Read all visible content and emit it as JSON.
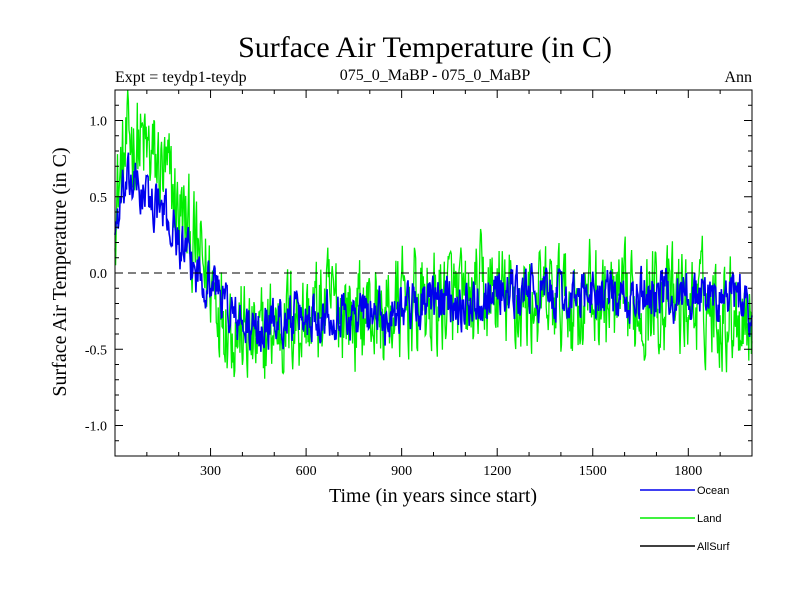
{
  "chart_data": {
    "type": "line",
    "title": "Surface Air Temperature (in C)",
    "subtitle_left": "Expt = teydp1-teydp",
    "subtitle_center": "075_0_MaBP - 075_0_MaBP",
    "subtitle_right": "Ann",
    "xlabel": "Time (in years since start)",
    "ylabel": "Surface Air Temperature (in C)",
    "xlim": [
      0,
      2000
    ],
    "ylim": [
      -1.2,
      1.2
    ],
    "x_ticks": [
      300,
      600,
      900,
      1200,
      1500,
      1800
    ],
    "x_tick_labels": [
      "300",
      "600",
      "900",
      "1200",
      "1500",
      "1800"
    ],
    "y_ticks": [
      1.0,
      0.5,
      0.0,
      -0.5,
      -1.0
    ],
    "y_tick_labels": [
      "1.0",
      "0.5",
      "0.0",
      "-0.5",
      "-1.0"
    ],
    "zero_line": "dashed",
    "legend_position": "bottom-right",
    "series": [
      {
        "name": "Land",
        "color": "#00ee00",
        "x": [
          0,
          25,
          50,
          75,
          100,
          125,
          150,
          175,
          200,
          225,
          250,
          275,
          300,
          325,
          350,
          375,
          400,
          425,
          450,
          475,
          500,
          550,
          600,
          650,
          700,
          750,
          800,
          850,
          900,
          950,
          1000,
          1050,
          1100,
          1150,
          1200,
          1250,
          1300,
          1350,
          1400,
          1450,
          1500,
          1550,
          1600,
          1650,
          1700,
          1750,
          1800,
          1850,
          1900,
          1950,
          2000
        ],
        "values": [
          0.45,
          0.7,
          0.9,
          0.85,
          0.78,
          0.72,
          0.65,
          0.55,
          0.4,
          0.3,
          0.15,
          0.05,
          -0.05,
          -0.15,
          -0.25,
          -0.35,
          -0.4,
          -0.45,
          -0.5,
          -0.42,
          -0.35,
          -0.3,
          -0.3,
          -0.25,
          -0.2,
          -0.28,
          -0.25,
          -0.3,
          -0.22,
          -0.2,
          -0.22,
          -0.15,
          -0.25,
          -0.15,
          -0.15,
          -0.2,
          -0.18,
          -0.2,
          -0.18,
          -0.2,
          -0.15,
          -0.2,
          -0.25,
          -0.2,
          -0.15,
          -0.2,
          -0.2,
          -0.2,
          -0.25,
          -0.22,
          -0.3
        ],
        "noise_amplitude": 0.3
      },
      {
        "name": "Ocean",
        "color": "#0000ee",
        "x": [
          0,
          25,
          50,
          75,
          100,
          125,
          150,
          175,
          200,
          225,
          250,
          275,
          300,
          325,
          350,
          375,
          400,
          425,
          450,
          475,
          500,
          550,
          600,
          650,
          700,
          750,
          800,
          850,
          900,
          950,
          1000,
          1050,
          1100,
          1150,
          1200,
          1250,
          1300,
          1350,
          1400,
          1450,
          1500,
          1550,
          1600,
          1650,
          1700,
          1750,
          1800,
          1850,
          1900,
          1950,
          2000
        ],
        "values": [
          0.3,
          0.5,
          0.6,
          0.55,
          0.5,
          0.45,
          0.4,
          0.32,
          0.2,
          0.1,
          0.02,
          -0.02,
          -0.05,
          -0.1,
          -0.2,
          -0.3,
          -0.35,
          -0.38,
          -0.4,
          -0.35,
          -0.3,
          -0.3,
          -0.3,
          -0.25,
          -0.25,
          -0.28,
          -0.25,
          -0.3,
          -0.2,
          -0.2,
          -0.2,
          -0.15,
          -0.22,
          -0.15,
          -0.1,
          -0.15,
          -0.12,
          -0.15,
          -0.15,
          -0.18,
          -0.12,
          -0.15,
          -0.22,
          -0.15,
          -0.12,
          -0.15,
          -0.12,
          -0.15,
          -0.18,
          -0.15,
          -0.25
        ],
        "noise_amplitude": 0.14
      },
      {
        "name": "AllSurf",
        "color": "#000000",
        "x": [],
        "values": []
      }
    ],
    "legend_order": [
      "Ocean",
      "Land",
      "AllSurf"
    ]
  }
}
